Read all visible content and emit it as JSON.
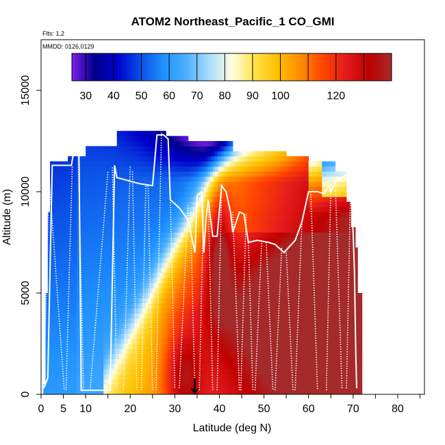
{
  "chart_data": {
    "type": "heatmap",
    "title": "ATOM2 Northeast_Pacific_1 CO_GMI",
    "flights_label": "Flts: 1,2",
    "date_label": "MMDD: 0126,0129",
    "xlabel": "Latitude (deg N)",
    "ylabel": "Altitude (m)",
    "xlim": [
      0,
      86
    ],
    "ylim": [
      0,
      17500
    ],
    "x_ticks": [
      0,
      5,
      10,
      20,
      30,
      40,
      50,
      60,
      70,
      80
    ],
    "x_minor_ticks": [
      15,
      25,
      35,
      45,
      55,
      65,
      75,
      85
    ],
    "y_ticks": [
      0,
      5000,
      10000,
      15000
    ],
    "colorbar": {
      "min": 25,
      "max": 140,
      "ticks": [
        30,
        40,
        50,
        60,
        70,
        80,
        90,
        100,
        120
      ],
      "boundaries": [
        25,
        30,
        40,
        50,
        60,
        70,
        80,
        90,
        100,
        110,
        120,
        130,
        140
      ],
      "colors": [
        "#7a1fe8",
        "#00008b",
        "#0000cd",
        "#0a50e6",
        "#1e90ff",
        "#4db0ff",
        "#a6dcff",
        "#ffffe0",
        "#ffe14a",
        "#ffc000",
        "#ff8c00",
        "#ff4500",
        "#e31a1c",
        "#c00000",
        "#a52a2a"
      ]
    },
    "marker_latitude": 34.5,
    "flight_track": [
      [
        0.6,
        300
      ],
      [
        1.5,
        800
      ],
      [
        2.5,
        11300
      ],
      [
        6.8,
        11300
      ],
      [
        7.5,
        12200
      ],
      [
        8.5,
        12300
      ],
      [
        9.0,
        200
      ],
      [
        10.0,
        200
      ],
      [
        15.5,
        200
      ],
      [
        16.5,
        11300
      ],
      [
        17.0,
        10700
      ],
      [
        22.0,
        10400
      ],
      [
        25.0,
        10300
      ],
      [
        26.0,
        12800
      ],
      [
        27.5,
        12800
      ],
      [
        28.5,
        12600
      ],
      [
        29.0,
        9600
      ],
      [
        31.0,
        9200
      ],
      [
        33.0,
        8600
      ],
      [
        34.5,
        7000
      ],
      [
        35.0,
        9800
      ],
      [
        36.0,
        10000
      ],
      [
        36.5,
        7000
      ],
      [
        37.0,
        8700
      ],
      [
        37.5,
        9600
      ],
      [
        38.5,
        7800
      ],
      [
        39.5,
        7800
      ],
      [
        40.5,
        10300
      ],
      [
        41.5,
        10000
      ],
      [
        42.5,
        9000
      ],
      [
        43.0,
        8000
      ],
      [
        44.5,
        9000
      ],
      [
        45.5,
        8900
      ],
      [
        46.5,
        7500
      ],
      [
        48.5,
        7600
      ],
      [
        51.0,
        7500
      ],
      [
        52.5,
        7400
      ],
      [
        54.5,
        7000
      ],
      [
        57.0,
        7600
      ],
      [
        58.5,
        8500
      ],
      [
        60.0,
        10000
      ],
      [
        62.0,
        10000
      ],
      [
        63.5,
        9900
      ],
      [
        64.5,
        10300
      ],
      [
        65.0,
        10000
      ],
      [
        66.0,
        10500
      ],
      [
        69.0,
        10900
      ],
      [
        69.5,
        10000
      ],
      [
        70.0,
        8000
      ],
      [
        70.3,
        6000
      ],
      [
        70.6,
        2000
      ],
      [
        70.8,
        300
      ]
    ],
    "vertical_profiles": [
      [
        [
          0.6,
          300
        ],
        [
          1.8,
          11000
        ]
      ],
      [
        [
          1.6,
          11300
        ],
        [
          5.2,
          200
        ]
      ],
      [
        [
          5.6,
          200
        ],
        [
          7.0,
          11300
        ]
      ],
      [
        [
          8.3,
          12300
        ],
        [
          9.5,
          200
        ]
      ],
      [
        [
          11.0,
          200
        ],
        [
          15.0,
          11000
        ]
      ],
      [
        [
          16.0,
          11200
        ],
        [
          17.0,
          200
        ]
      ],
      [
        [
          18.5,
          200
        ],
        [
          20.0,
          11300
        ]
      ],
      [
        [
          20.5,
          11000
        ],
        [
          21.5,
          200
        ]
      ],
      [
        [
          22.5,
          200
        ],
        [
          23.5,
          10300
        ]
      ],
      [
        [
          24.0,
          10300
        ],
        [
          25.0,
          200
        ]
      ],
      [
        [
          25.8,
          200
        ],
        [
          27.0,
          12900
        ]
      ],
      [
        [
          29.0,
          9600
        ],
        [
          30.0,
          300
        ]
      ],
      [
        [
          31.0,
          300
        ],
        [
          33.0,
          9400
        ]
      ],
      [
        [
          33.5,
          9000
        ],
        [
          34.5,
          200
        ]
      ],
      [
        [
          35.5,
          200
        ],
        [
          36.5,
          9900
        ]
      ],
      [
        [
          37.5,
          9600
        ],
        [
          38.5,
          200
        ]
      ],
      [
        [
          39.5,
          200
        ],
        [
          40.5,
          10300
        ]
      ],
      [
        [
          43.0,
          9000
        ],
        [
          44.5,
          200
        ]
      ],
      [
        [
          44.8,
          200
        ],
        [
          46.0,
          8900
        ]
      ],
      [
        [
          46.5,
          7600
        ],
        [
          47.5,
          200
        ]
      ],
      [
        [
          48.0,
          200
        ],
        [
          49.5,
          7600
        ]
      ],
      [
        [
          50.5,
          7500
        ],
        [
          52.0,
          200
        ]
      ],
      [
        [
          52.5,
          200
        ],
        [
          54.0,
          7300
        ]
      ],
      [
        [
          55.0,
          7000
        ],
        [
          56.5,
          200
        ]
      ],
      [
        [
          57.0,
          200
        ],
        [
          58.5,
          8500
        ]
      ],
      [
        [
          60.5,
          10000
        ],
        [
          62.0,
          200
        ]
      ],
      [
        [
          64.0,
          200
        ],
        [
          65.0,
          10300
        ]
      ],
      [
        [
          66.0,
          10400
        ],
        [
          67.5,
          300
        ]
      ],
      [
        [
          68.5,
          300
        ],
        [
          69.5,
          10900
        ]
      ]
    ]
  }
}
